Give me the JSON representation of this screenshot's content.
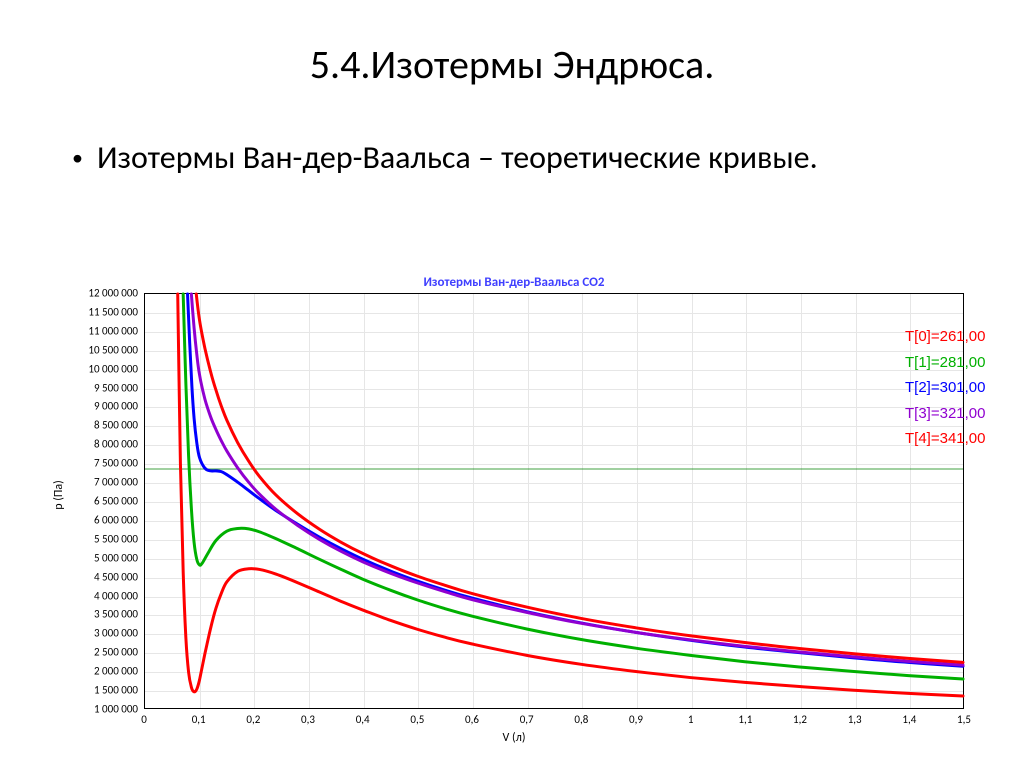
{
  "title": "5.4.Изотермы Эндрюса.",
  "bullet": "Изотермы Ван-дер-Ваальса – теоретические кривые.",
  "chart": {
    "title": "Изотермы Ван-дер-Ваальса CO2",
    "title_color": "#3030ff",
    "title_fontsize": 13,
    "type": "line",
    "background_color": "#ffffff",
    "grid_color": "#e6e6e6",
    "axis_color": "#000000",
    "line_width": 3,
    "xaxis": {
      "label": "V (л)",
      "min": 0.0,
      "max": 1.5,
      "tick_step": 0.1,
      "ticks": [
        "0",
        "0,1",
        "0,2",
        "0,3",
        "0,4",
        "0,5",
        "0,6",
        "0,7",
        "0,8",
        "0,9",
        "1",
        "1,1",
        "1,2",
        "1,3",
        "1,4",
        "1,5"
      ],
      "label_fontsize": 12,
      "tick_fontsize": 11
    },
    "yaxis": {
      "label": "p (Па)",
      "min": 1000000,
      "max": 12000000,
      "tick_step": 500000,
      "ticks": [
        "1 000 000",
        "1 500 000",
        "2 000 000",
        "2 500 000",
        "3 000 000",
        "3 500 000",
        "4 000 000",
        "4 500 000",
        "5 000 000",
        "5 500 000",
        "6 000 000",
        "6 500 000",
        "7 000 000",
        "7 500 000",
        "8 000 000",
        "8 500 000",
        "9 000 000",
        "9 500 000",
        "10 000 000",
        "10 500 000",
        "11 000 000",
        "11 500 000",
        "12 000 000"
      ],
      "label_fontsize": 12,
      "tick_fontsize": 11
    },
    "critical_line": {
      "y": 7350000,
      "color": "#008000",
      "width": 0.7
    },
    "legend": {
      "position": "right-inside-top",
      "fontsize": 15,
      "items": [
        {
          "label": "T[0]=261,00",
          "color": "#ff0000"
        },
        {
          "label": "T[1]=281,00",
          "color": "#00b000"
        },
        {
          "label": "T[2]=301,00",
          "color": "#0000ff"
        },
        {
          "label": "T[3]=321,00",
          "color": "#9000d0"
        },
        {
          "label": "T[4]=341,00",
          "color": "#ff0000"
        }
      ]
    },
    "series": [
      {
        "name": "T0_261",
        "color": "#ff0000",
        "points": [
          [
            0.06,
            12000000
          ],
          [
            0.065,
            7500000
          ],
          [
            0.07,
            4600000
          ],
          [
            0.075,
            2850000
          ],
          [
            0.08,
            1950000
          ],
          [
            0.085,
            1550000
          ],
          [
            0.09,
            1430000
          ],
          [
            0.095,
            1500000
          ],
          [
            0.1,
            1750000
          ],
          [
            0.11,
            2450000
          ],
          [
            0.12,
            3100000
          ],
          [
            0.13,
            3650000
          ],
          [
            0.14,
            4050000
          ],
          [
            0.15,
            4350000
          ],
          [
            0.17,
            4630000
          ],
          [
            0.19,
            4700000
          ],
          [
            0.21,
            4680000
          ],
          [
            0.24,
            4560000
          ],
          [
            0.28,
            4330000
          ],
          [
            0.32,
            4080000
          ],
          [
            0.36,
            3830000
          ],
          [
            0.4,
            3600000
          ],
          [
            0.45,
            3330000
          ],
          [
            0.5,
            3090000
          ],
          [
            0.55,
            2880000
          ],
          [
            0.6,
            2700000
          ],
          [
            0.7,
            2400000
          ],
          [
            0.8,
            2160000
          ],
          [
            0.9,
            1970000
          ],
          [
            1.0,
            1810000
          ],
          [
            1.1,
            1680000
          ],
          [
            1.2,
            1570000
          ],
          [
            1.3,
            1470000
          ],
          [
            1.4,
            1390000
          ],
          [
            1.5,
            1320000
          ]
        ]
      },
      {
        "name": "T1_281",
        "color": "#00b000",
        "points": [
          [
            0.07,
            12000000
          ],
          [
            0.075,
            9600000
          ],
          [
            0.08,
            7700000
          ],
          [
            0.085,
            6300000
          ],
          [
            0.09,
            5400000
          ],
          [
            0.095,
            4950000
          ],
          [
            0.1,
            4800000
          ],
          [
            0.105,
            4850000
          ],
          [
            0.115,
            5100000
          ],
          [
            0.13,
            5450000
          ],
          [
            0.15,
            5700000
          ],
          [
            0.17,
            5770000
          ],
          [
            0.19,
            5760000
          ],
          [
            0.21,
            5680000
          ],
          [
            0.24,
            5500000
          ],
          [
            0.28,
            5230000
          ],
          [
            0.32,
            4950000
          ],
          [
            0.36,
            4680000
          ],
          [
            0.4,
            4420000
          ],
          [
            0.45,
            4130000
          ],
          [
            0.5,
            3870000
          ],
          [
            0.55,
            3640000
          ],
          [
            0.6,
            3440000
          ],
          [
            0.7,
            3100000
          ],
          [
            0.8,
            2820000
          ],
          [
            0.9,
            2590000
          ],
          [
            1.0,
            2400000
          ],
          [
            1.1,
            2230000
          ],
          [
            1.2,
            2090000
          ],
          [
            1.3,
            1970000
          ],
          [
            1.4,
            1860000
          ],
          [
            1.5,
            1770000
          ]
        ]
      },
      {
        "name": "T2_301",
        "color": "#0000ff",
        "points": [
          [
            0.078,
            12000000
          ],
          [
            0.082,
            10700000
          ],
          [
            0.086,
            9550000
          ],
          [
            0.09,
            8700000
          ],
          [
            0.095,
            8050000
          ],
          [
            0.1,
            7650000
          ],
          [
            0.11,
            7370000
          ],
          [
            0.12,
            7300000
          ],
          [
            0.13,
            7300000
          ],
          [
            0.14,
            7280000
          ],
          [
            0.15,
            7200000
          ],
          [
            0.17,
            7000000
          ],
          [
            0.19,
            6780000
          ],
          [
            0.21,
            6560000
          ],
          [
            0.24,
            6250000
          ],
          [
            0.28,
            5880000
          ],
          [
            0.32,
            5540000
          ],
          [
            0.36,
            5230000
          ],
          [
            0.4,
            4950000
          ],
          [
            0.45,
            4640000
          ],
          [
            0.5,
            4370000
          ],
          [
            0.55,
            4130000
          ],
          [
            0.6,
            3920000
          ],
          [
            0.7,
            3560000
          ],
          [
            0.8,
            3260000
          ],
          [
            0.9,
            3010000
          ],
          [
            1.0,
            2800000
          ],
          [
            1.1,
            2620000
          ],
          [
            1.2,
            2470000
          ],
          [
            1.3,
            2330000
          ],
          [
            1.4,
            2210000
          ],
          [
            1.5,
            2110000
          ]
        ]
      },
      {
        "name": "T3_321",
        "color": "#9000d0",
        "points": [
          [
            0.085,
            12000000
          ],
          [
            0.09,
            11100000
          ],
          [
            0.095,
            10400000
          ],
          [
            0.1,
            9850000
          ],
          [
            0.11,
            9200000
          ],
          [
            0.12,
            8750000
          ],
          [
            0.13,
            8400000
          ],
          [
            0.14,
            8100000
          ],
          [
            0.15,
            7830000
          ],
          [
            0.17,
            7380000
          ],
          [
            0.19,
            7000000
          ],
          [
            0.21,
            6680000
          ],
          [
            0.24,
            6280000
          ],
          [
            0.28,
            5850000
          ],
          [
            0.32,
            5480000
          ],
          [
            0.36,
            5160000
          ],
          [
            0.4,
            4880000
          ],
          [
            0.45,
            4580000
          ],
          [
            0.5,
            4320000
          ],
          [
            0.55,
            4090000
          ],
          [
            0.6,
            3880000
          ],
          [
            0.7,
            3540000
          ],
          [
            0.8,
            3250000
          ],
          [
            0.9,
            3010000
          ],
          [
            1.0,
            2810000
          ],
          [
            1.1,
            2640000
          ],
          [
            1.2,
            2490000
          ],
          [
            1.3,
            2360000
          ],
          [
            1.4,
            2240000
          ],
          [
            1.5,
            2140000
          ]
        ]
      },
      {
        "name": "T4_341",
        "color": "#ff0000",
        "points": [
          [
            0.094,
            12000000
          ],
          [
            0.1,
            11300000
          ],
          [
            0.11,
            10550000
          ],
          [
            0.12,
            9950000
          ],
          [
            0.13,
            9450000
          ],
          [
            0.14,
            9020000
          ],
          [
            0.15,
            8650000
          ],
          [
            0.17,
            8050000
          ],
          [
            0.19,
            7560000
          ],
          [
            0.21,
            7150000
          ],
          [
            0.24,
            6660000
          ],
          [
            0.28,
            6160000
          ],
          [
            0.32,
            5750000
          ],
          [
            0.36,
            5400000
          ],
          [
            0.4,
            5100000
          ],
          [
            0.45,
            4780000
          ],
          [
            0.5,
            4500000
          ],
          [
            0.55,
            4260000
          ],
          [
            0.6,
            4040000
          ],
          [
            0.7,
            3680000
          ],
          [
            0.8,
            3380000
          ],
          [
            0.9,
            3130000
          ],
          [
            1.0,
            2920000
          ],
          [
            1.1,
            2740000
          ],
          [
            1.2,
            2580000
          ],
          [
            1.3,
            2440000
          ],
          [
            1.4,
            2320000
          ],
          [
            1.5,
            2210000
          ]
        ]
      }
    ]
  }
}
